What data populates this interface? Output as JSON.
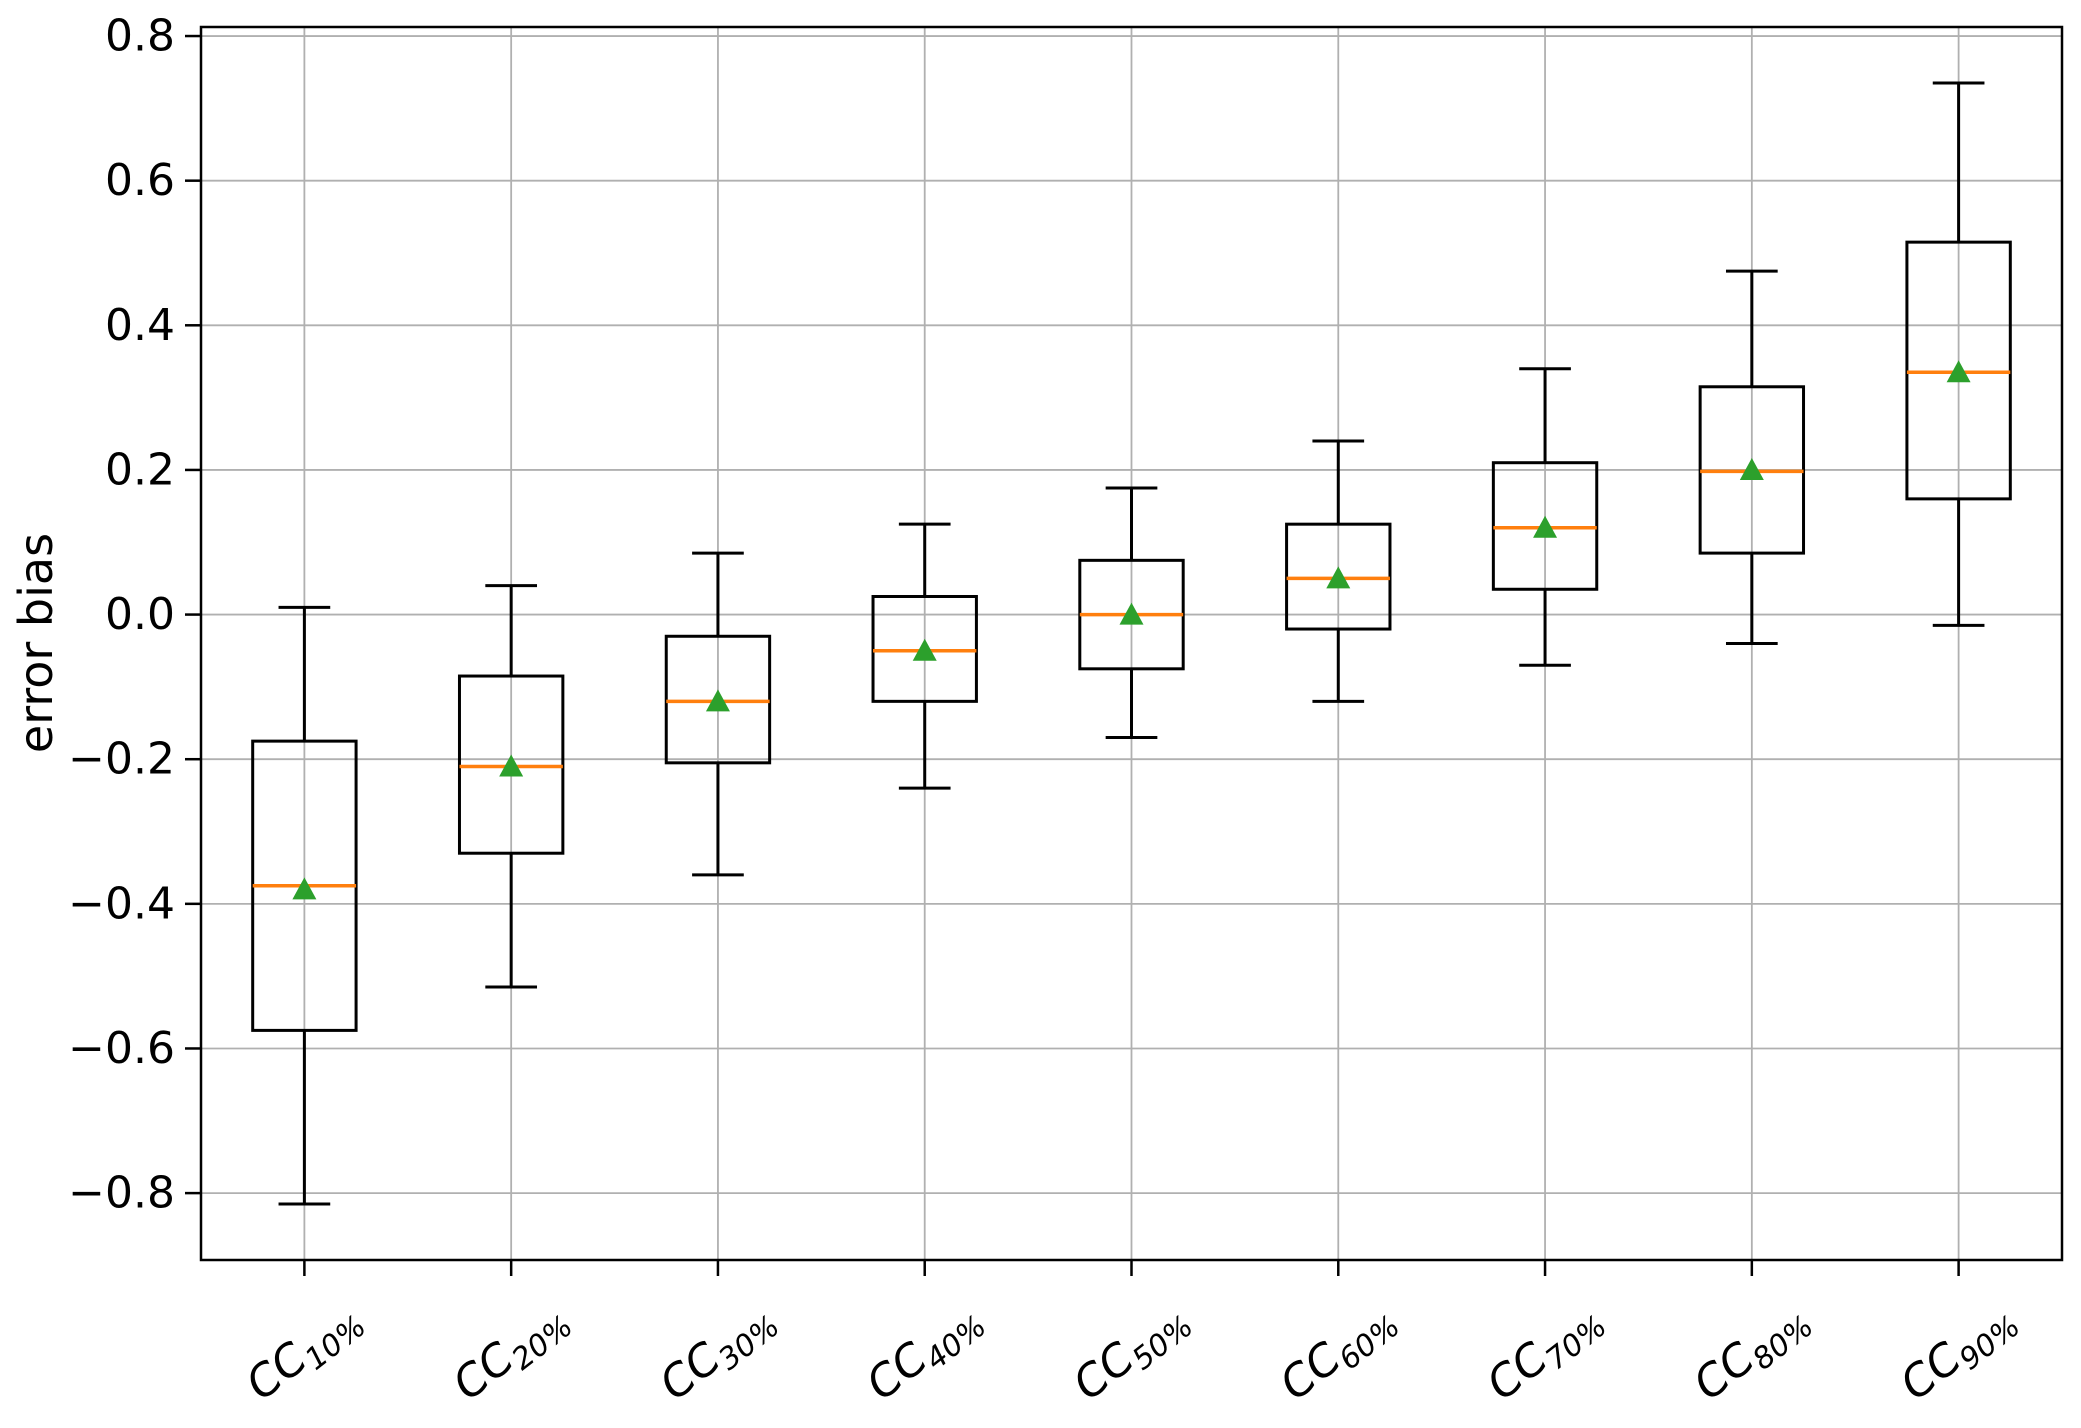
{
  "chart_data": {
    "type": "boxplot",
    "title": "",
    "xlabel": "",
    "ylabel": "error bias",
    "ylim": [
      -0.8925,
      0.8125
    ],
    "grid": true,
    "legend_position": "none",
    "yticks": [
      {
        "value": 0.8,
        "label": "0.8"
      },
      {
        "value": 0.6,
        "label": "0.6"
      },
      {
        "value": 0.4,
        "label": "0.4"
      },
      {
        "value": 0.2,
        "label": "0.2"
      },
      {
        "value": 0.0,
        "label": "0.0"
      },
      {
        "value": -0.2,
        "label": "−0.2"
      },
      {
        "value": -0.4,
        "label": "−0.4"
      },
      {
        "value": -0.6,
        "label": "−0.6"
      },
      {
        "value": -0.8,
        "label": "−0.8"
      }
    ],
    "categories": [
      {
        "base": "CC",
        "subscript": "10%",
        "label": "CC10%"
      },
      {
        "base": "CC",
        "subscript": "20%",
        "label": "CC20%"
      },
      {
        "base": "CC",
        "subscript": "30%",
        "label": "CC30%"
      },
      {
        "base": "CC",
        "subscript": "40%",
        "label": "CC40%"
      },
      {
        "base": "CC",
        "subscript": "50%",
        "label": "CC50%"
      },
      {
        "base": "CC",
        "subscript": "60%",
        "label": "CC60%"
      },
      {
        "base": "CC",
        "subscript": "70%",
        "label": "CC70%"
      },
      {
        "base": "CC",
        "subscript": "80%",
        "label": "CC80%"
      },
      {
        "base": "CC",
        "subscript": "90%",
        "label": "CC90%"
      }
    ],
    "boxes": [
      {
        "category": "CC10%",
        "whisker_low": -0.815,
        "q1": -0.575,
        "median": -0.375,
        "mean": -0.38,
        "q3": -0.175,
        "whisker_high": 0.01
      },
      {
        "category": "CC20%",
        "whisker_low": -0.515,
        "q1": -0.33,
        "median": -0.21,
        "mean": -0.21,
        "q3": -0.085,
        "whisker_high": 0.04
      },
      {
        "category": "CC30%",
        "whisker_low": -0.36,
        "q1": -0.205,
        "median": -0.12,
        "mean": -0.12,
        "q3": -0.03,
        "whisker_high": 0.085
      },
      {
        "category": "CC40%",
        "whisker_low": -0.24,
        "q1": -0.12,
        "median": -0.05,
        "mean": -0.05,
        "q3": 0.025,
        "whisker_high": 0.125
      },
      {
        "category": "CC50%",
        "whisker_low": -0.17,
        "q1": -0.075,
        "median": 0.0,
        "mean": 0.0,
        "q3": 0.075,
        "whisker_high": 0.175
      },
      {
        "category": "CC60%",
        "whisker_low": -0.12,
        "q1": -0.02,
        "median": 0.05,
        "mean": 0.05,
        "q3": 0.125,
        "whisker_high": 0.24
      },
      {
        "category": "CC70%",
        "whisker_low": -0.07,
        "q1": 0.035,
        "median": 0.12,
        "mean": 0.12,
        "q3": 0.21,
        "whisker_high": 0.34
      },
      {
        "category": "CC80%",
        "whisker_low": -0.04,
        "q1": 0.085,
        "median": 0.198,
        "mean": 0.2,
        "q3": 0.315,
        "whisker_high": 0.475
      },
      {
        "category": "CC90%",
        "whisker_low": -0.015,
        "q1": 0.16,
        "median": 0.335,
        "mean": 0.335,
        "q3": 0.515,
        "whisker_high": 0.735
      }
    ],
    "colors": {
      "box": "#000000",
      "median": "#ff7f0e",
      "mean": "#2ca02c",
      "grid": "#b0b0b0",
      "axis": "#000000",
      "background": "#ffffff"
    }
  }
}
